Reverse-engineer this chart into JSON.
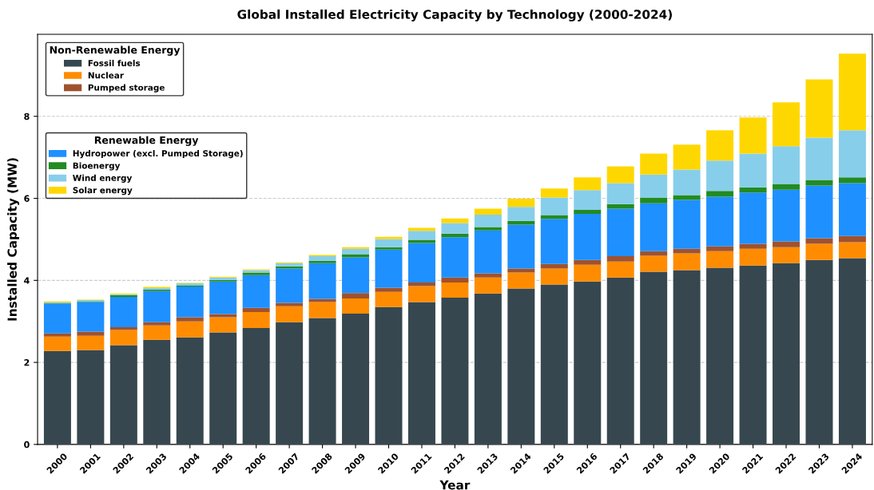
{
  "chart_data": {
    "type": "bar",
    "stacked": true,
    "title": "Global Installed Electricity Capacity by Technology (2000-2024)",
    "xlabel": "Year",
    "ylabel": "Installed Capacity (MW)",
    "categories": [
      "2000",
      "2001",
      "2002",
      "2003",
      "2004",
      "2005",
      "2006",
      "2007",
      "2008",
      "2009",
      "2010",
      "2011",
      "2012",
      "2013",
      "2014",
      "2015",
      "2016",
      "2017",
      "2018",
      "2019",
      "2020",
      "2021",
      "2022",
      "2023",
      "2024"
    ],
    "ylim": [
      0,
      10
    ],
    "yticks": [
      0,
      2,
      4,
      6,
      8
    ],
    "grid": "y",
    "legend": "top left",
    "legend_title": [
      "Non-Renewable Energy",
      "Renewable Energy"
    ],
    "series": [
      {
        "name": "Fossil fuels",
        "color": "#37474f",
        "values": [
          2.28,
          2.3,
          2.42,
          2.55,
          2.61,
          2.73,
          2.84,
          2.98,
          3.08,
          3.19,
          3.35,
          3.47,
          3.58,
          3.68,
          3.8,
          3.9,
          3.97,
          4.07,
          4.21,
          4.25,
          4.31,
          4.36,
          4.42,
          4.5,
          4.54
        ]
      },
      {
        "name": "Nuclear",
        "color": "#ff8c00",
        "values": [
          0.35,
          0.35,
          0.37,
          0.35,
          0.39,
          0.37,
          0.39,
          0.39,
          0.39,
          0.37,
          0.37,
          0.39,
          0.37,
          0.39,
          0.39,
          0.39,
          0.41,
          0.39,
          0.39,
          0.41,
          0.4,
          0.41,
          0.39,
          0.39,
          0.39
        ]
      },
      {
        "name": "Pumped storage",
        "color": "#a0522d",
        "values": [
          0.08,
          0.1,
          0.07,
          0.08,
          0.1,
          0.08,
          0.1,
          0.08,
          0.08,
          0.13,
          0.1,
          0.09,
          0.12,
          0.1,
          0.1,
          0.11,
          0.12,
          0.13,
          0.11,
          0.11,
          0.12,
          0.12,
          0.14,
          0.14,
          0.15
        ]
      },
      {
        "name": "Hydropower (excl. Pumped Storage)",
        "color": "#1e90ff",
        "values": [
          0.72,
          0.72,
          0.74,
          0.76,
          0.75,
          0.79,
          0.8,
          0.84,
          0.87,
          0.87,
          0.93,
          0.96,
          0.98,
          1.05,
          1.07,
          1.1,
          1.12,
          1.16,
          1.17,
          1.19,
          1.21,
          1.25,
          1.26,
          1.28,
          1.29
        ]
      },
      {
        "name": "Bioenergy",
        "color": "#228b22",
        "values": [
          0.02,
          0.02,
          0.04,
          0.04,
          0.03,
          0.04,
          0.06,
          0.05,
          0.06,
          0.08,
          0.06,
          0.08,
          0.09,
          0.08,
          0.09,
          0.09,
          0.1,
          0.11,
          0.14,
          0.12,
          0.14,
          0.13,
          0.14,
          0.14,
          0.14
        ]
      },
      {
        "name": "Wind energy",
        "color": "#87ceeb",
        "values": [
          0.02,
          0.03,
          0.02,
          0.03,
          0.05,
          0.06,
          0.06,
          0.08,
          0.11,
          0.13,
          0.2,
          0.22,
          0.26,
          0.3,
          0.34,
          0.43,
          0.48,
          0.51,
          0.56,
          0.62,
          0.74,
          0.82,
          0.92,
          1.03,
          1.15
        ]
      },
      {
        "name": "Solar energy",
        "color": "#ffd700",
        "values": [
          0.02,
          0.01,
          0.02,
          0.03,
          0.01,
          0.02,
          0.02,
          0.02,
          0.03,
          0.04,
          0.05,
          0.07,
          0.11,
          0.15,
          0.2,
          0.22,
          0.31,
          0.41,
          0.51,
          0.61,
          0.74,
          0.88,
          1.07,
          1.42,
          1.87
        ]
      }
    ]
  }
}
